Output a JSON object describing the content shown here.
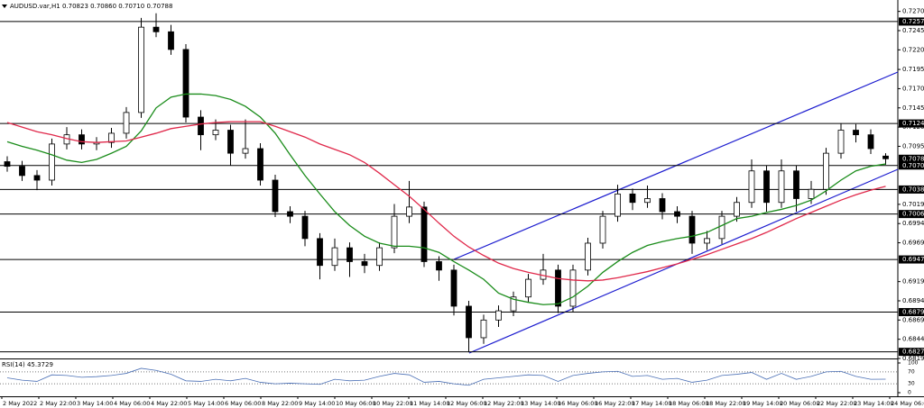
{
  "chart_data": {
    "type": "candlestick",
    "header": "AUDUSD.var,H1  0.70823 0.70860 0.70710 0.70788",
    "ylim": [
      0.6819,
      0.7283
    ],
    "yticks": [
      {
        "value": 0.72705,
        "label": "0.72705"
      },
      {
        "value": 0.72455,
        "label": "0.72455"
      },
      {
        "value": 0.72205,
        "label": "0.72205"
      },
      {
        "value": 0.7195,
        "label": "0.71950"
      },
      {
        "value": 0.717,
        "label": "0.71700"
      },
      {
        "value": 0.7145,
        "label": "0.71450"
      },
      {
        "value": 0.712,
        "label": "0.71200"
      },
      {
        "value": 0.7095,
        "label": "0.70950"
      },
      {
        "value": 0.70195,
        "label": "0.70195"
      },
      {
        "value": 0.69945,
        "label": "0.69945"
      },
      {
        "value": 0.69695,
        "label": "0.69695"
      },
      {
        "value": 0.6919,
        "label": "0.69190"
      },
      {
        "value": 0.6894,
        "label": "0.68940"
      },
      {
        "value": 0.6869,
        "label": "0.68690"
      },
      {
        "value": 0.6844,
        "label": "0.68440"
      },
      {
        "value": 0.6819,
        "label": "0.68190"
      }
    ],
    "levels": [
      {
        "value": 0.72573,
        "label": "0.72573"
      },
      {
        "value": 0.71247,
        "label": "0.71247"
      },
      {
        "value": 0.707,
        "label": "0.70700"
      },
      {
        "value": 0.70388,
        "label": "0.70388"
      },
      {
        "value": 0.70069,
        "label": "0.70069"
      },
      {
        "value": 0.69478,
        "label": "0.69478"
      },
      {
        "value": 0.68793,
        "label": "0.68793"
      },
      {
        "value": 0.68276,
        "label": "0.68276"
      }
    ],
    "last_price": {
      "value": 0.70788,
      "label": "0.70788"
    },
    "xlabels": [
      "2 May 2022",
      "2 May 22:00",
      "3 May 14:00",
      "4 May 06:00",
      "4 May 22:00",
      "5 May 14:00",
      "6 May 06:00",
      "8 May 22:00",
      "9 May 14:00",
      "10 May 06:00",
      "10 May 22:00",
      "11 May 14:00",
      "12 May 06:00",
      "12 May 22:00",
      "13 May 14:00",
      "16 May 06:00",
      "16 May 22:00",
      "17 May 14:00",
      "18 May 06:00",
      "18 May 22:00",
      "19 May 14:00",
      "20 May 06:00",
      "22 May 22:00",
      "23 May 14:00",
      "24 May 06:00"
    ],
    "candles": {
      "open": [
        0.7075,
        0.7069,
        0.7057,
        0.7051,
        0.7098,
        0.711,
        0.7098,
        0.71,
        0.7112,
        0.7139,
        0.725,
        0.7244,
        0.7221,
        0.7133,
        0.711,
        0.7116,
        0.7086,
        0.7092,
        0.7051,
        0.701,
        0.7004,
        0.6975,
        0.694,
        0.6963,
        0.6945,
        0.694,
        0.6963,
        0.7004,
        0.7016,
        0.6945,
        0.6934,
        0.6887,
        0.6846,
        0.6869,
        0.6881,
        0.6899,
        0.6922,
        0.6934,
        0.6887,
        0.6934,
        0.6969,
        0.7004,
        0.7033,
        0.7022,
        0.7027,
        0.701,
        0.7004,
        0.6969,
        0.6975,
        0.7004,
        0.7022,
        0.7063,
        0.7022,
        0.7063,
        0.7027,
        0.7039,
        0.7086,
        0.7116,
        0.711,
        0.70823
      ],
      "high": [
        0.7082,
        0.7076,
        0.7064,
        0.7105,
        0.712,
        0.7117,
        0.7107,
        0.7119,
        0.7146,
        0.7262,
        0.7268,
        0.7253,
        0.7228,
        0.7142,
        0.713,
        0.7123,
        0.713,
        0.7099,
        0.7058,
        0.7017,
        0.7011,
        0.6982,
        0.6975,
        0.697,
        0.6955,
        0.697,
        0.702,
        0.705,
        0.7023,
        0.6952,
        0.6941,
        0.6894,
        0.6876,
        0.6888,
        0.6906,
        0.6929,
        0.6955,
        0.6941,
        0.6941,
        0.6976,
        0.7011,
        0.7045,
        0.704,
        0.7044,
        0.7034,
        0.7017,
        0.7011,
        0.6985,
        0.7011,
        0.7029,
        0.7078,
        0.707,
        0.7078,
        0.707,
        0.705,
        0.7093,
        0.7125,
        0.7124,
        0.7117,
        0.7086
      ],
      "low": [
        0.7062,
        0.705,
        0.7038,
        0.7044,
        0.7091,
        0.7091,
        0.709,
        0.7093,
        0.7105,
        0.7132,
        0.7237,
        0.7214,
        0.7126,
        0.709,
        0.7103,
        0.707,
        0.7079,
        0.7044,
        0.7003,
        0.6995,
        0.6965,
        0.6922,
        0.6933,
        0.6925,
        0.693,
        0.6933,
        0.6956,
        0.6995,
        0.6938,
        0.692,
        0.6875,
        0.6827,
        0.6838,
        0.686,
        0.6874,
        0.6892,
        0.6915,
        0.6878,
        0.688,
        0.6927,
        0.6962,
        0.6997,
        0.7012,
        0.7015,
        0.7,
        0.6995,
        0.6955,
        0.696,
        0.6968,
        0.6997,
        0.7015,
        0.701,
        0.7015,
        0.701,
        0.702,
        0.7032,
        0.7079,
        0.71,
        0.7085,
        0.7071
      ],
      "close": [
        0.7069,
        0.7057,
        0.7051,
        0.7098,
        0.711,
        0.7098,
        0.71,
        0.7112,
        0.7139,
        0.725,
        0.7244,
        0.7221,
        0.7133,
        0.711,
        0.7116,
        0.7086,
        0.7092,
        0.7051,
        0.701,
        0.7004,
        0.6975,
        0.694,
        0.6963,
        0.6945,
        0.694,
        0.6963,
        0.7004,
        0.7016,
        0.6945,
        0.6934,
        0.6887,
        0.6846,
        0.6869,
        0.6881,
        0.6899,
        0.6922,
        0.6934,
        0.6887,
        0.6934,
        0.6969,
        0.7004,
        0.7033,
        0.7022,
        0.7027,
        0.701,
        0.7004,
        0.6969,
        0.6975,
        0.7004,
        0.7022,
        0.7063,
        0.7022,
        0.7063,
        0.7027,
        0.7039,
        0.7086,
        0.7116,
        0.711,
        0.7092,
        0.70788
      ]
    },
    "series": [
      {
        "color": "#1a8c1a",
        "values": [
          0.7101,
          0.7095,
          0.709,
          0.7084,
          0.7077,
          0.7074,
          0.7078,
          0.7086,
          0.7095,
          0.7115,
          0.7145,
          0.7159,
          0.7163,
          0.7163,
          0.7161,
          0.7156,
          0.7147,
          0.7133,
          0.7112,
          0.7084,
          0.7057,
          0.7033,
          0.701,
          0.6992,
          0.6978,
          0.6969,
          0.6965,
          0.6965,
          0.6963,
          0.6957,
          0.6945,
          0.6934,
          0.6922,
          0.6904,
          0.6896,
          0.6892,
          0.6889,
          0.689,
          0.6899,
          0.6913,
          0.6931,
          0.6945,
          0.6957,
          0.6966,
          0.6971,
          0.6975,
          0.6978,
          0.6983,
          0.6992,
          0.7001,
          0.7004,
          0.7009,
          0.7013,
          0.7018,
          0.7025,
          0.7037,
          0.7051,
          0.7063,
          0.7069,
          0.7072
        ]
      },
      {
        "color": "#e0284a",
        "values": [
          0.7126,
          0.712,
          0.7114,
          0.711,
          0.7105,
          0.7101,
          0.71,
          0.7101,
          0.7102,
          0.7107,
          0.7112,
          0.7118,
          0.7121,
          0.7124,
          0.7126,
          0.7127,
          0.7127,
          0.7127,
          0.7121,
          0.7114,
          0.7107,
          0.7098,
          0.7091,
          0.7084,
          0.7074,
          0.706,
          0.7045,
          0.703,
          0.7013,
          0.6995,
          0.6978,
          0.6964,
          0.6953,
          0.6943,
          0.6936,
          0.6931,
          0.6927,
          0.6923,
          0.6921,
          0.692,
          0.6921,
          0.6924,
          0.6928,
          0.6932,
          0.6937,
          0.6942,
          0.6948,
          0.6954,
          0.6961,
          0.6968,
          0.6975,
          0.6983,
          0.6992,
          0.7001,
          0.7009,
          0.7017,
          0.7025,
          0.7032,
          0.7038,
          0.7043
        ]
      }
    ],
    "rsi": {
      "label": "RSI(14) 45.3729",
      "ylim": [
        0,
        100
      ],
      "yticks": [
        100,
        70,
        30,
        0
      ],
      "color": "#4a6fb5",
      "values": [
        50,
        42,
        38,
        60,
        58,
        52,
        54,
        58,
        65,
        82,
        75,
        62,
        40,
        38,
        45,
        40,
        48,
        35,
        30,
        32,
        30,
        28,
        45,
        40,
        42,
        55,
        65,
        60,
        35,
        38,
        30,
        25,
        45,
        50,
        55,
        60,
        58,
        38,
        58,
        65,
        70,
        72,
        55,
        58,
        45,
        48,
        35,
        42,
        58,
        62,
        68,
        45,
        65,
        45,
        55,
        70,
        72,
        55,
        45,
        45.3729
      ]
    }
  }
}
